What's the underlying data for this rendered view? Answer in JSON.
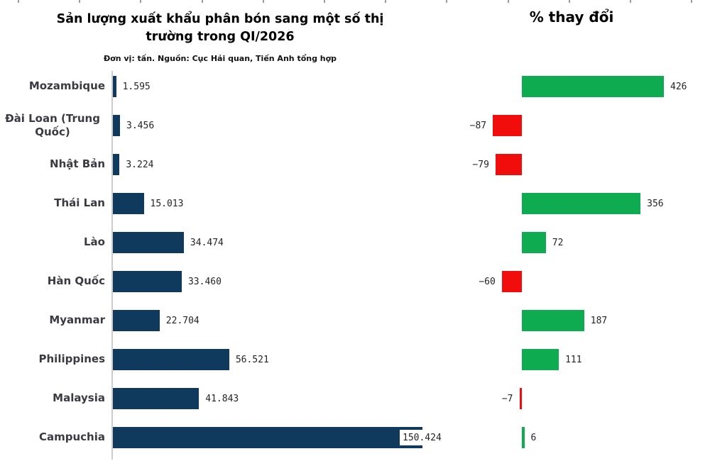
{
  "chart_data": [
    {
      "type": "bar",
      "orientation": "horizontal",
      "title": "Sản lượng xuất khẩu phân bón sang một số thị trường trong QI/2026",
      "subtitle": "Đơn vị: tấn. Nguồn: Cục Hải quan, Tiến Anh tổng hợp",
      "unit": "tấn",
      "categories": [
        "Mozambique",
        "Đài Loan (Trung Quốc)",
        "Nhật Bản",
        "Thái Lan",
        "Lào",
        "Hàn Quốc",
        "Myanmar",
        "Philippines",
        "Malaysia",
        "Campuchia"
      ],
      "values": [
        1595,
        3456,
        3224,
        15013,
        34474,
        33460,
        22704,
        56521,
        41843,
        150424
      ],
      "value_labels": [
        "1.595",
        "3.456",
        "3.224",
        "15.013",
        "34.474",
        "33.460",
        "22.704",
        "56.521",
        "41.843",
        "150.424"
      ],
      "bar_color": "#0f3a5e",
      "xlim": [
        0,
        155000
      ],
      "grid": false,
      "legend": false
    },
    {
      "type": "bar",
      "orientation": "horizontal",
      "title": "% thay đổi",
      "categories": [
        "Mozambique",
        "Đài Loan (Trung Quốc)",
        "Nhật Bản",
        "Thái Lan",
        "Lào",
        "Hàn Quốc",
        "Myanmar",
        "Philippines",
        "Malaysia",
        "Campuchia"
      ],
      "values": [
        426,
        -87,
        -79,
        356,
        72,
        -60,
        187,
        111,
        -7,
        6
      ],
      "value_labels": [
        "426",
        "−87",
        "−79",
        "356",
        "72",
        "−60",
        "187",
        "111",
        "−7",
        "6"
      ],
      "positive_color": "#0fab50",
      "negative_color": "#f20d0d",
      "xlim": [
        -120,
        450
      ],
      "grid": false,
      "legend": false
    }
  ],
  "colors": {
    "volume_bar": "#0f3a5e",
    "positive_change": "#0fab50",
    "negative_change": "#f20d0d",
    "axis_line": "#cccccc",
    "category_text": "#3a3a40",
    "value_text": "#242424"
  }
}
